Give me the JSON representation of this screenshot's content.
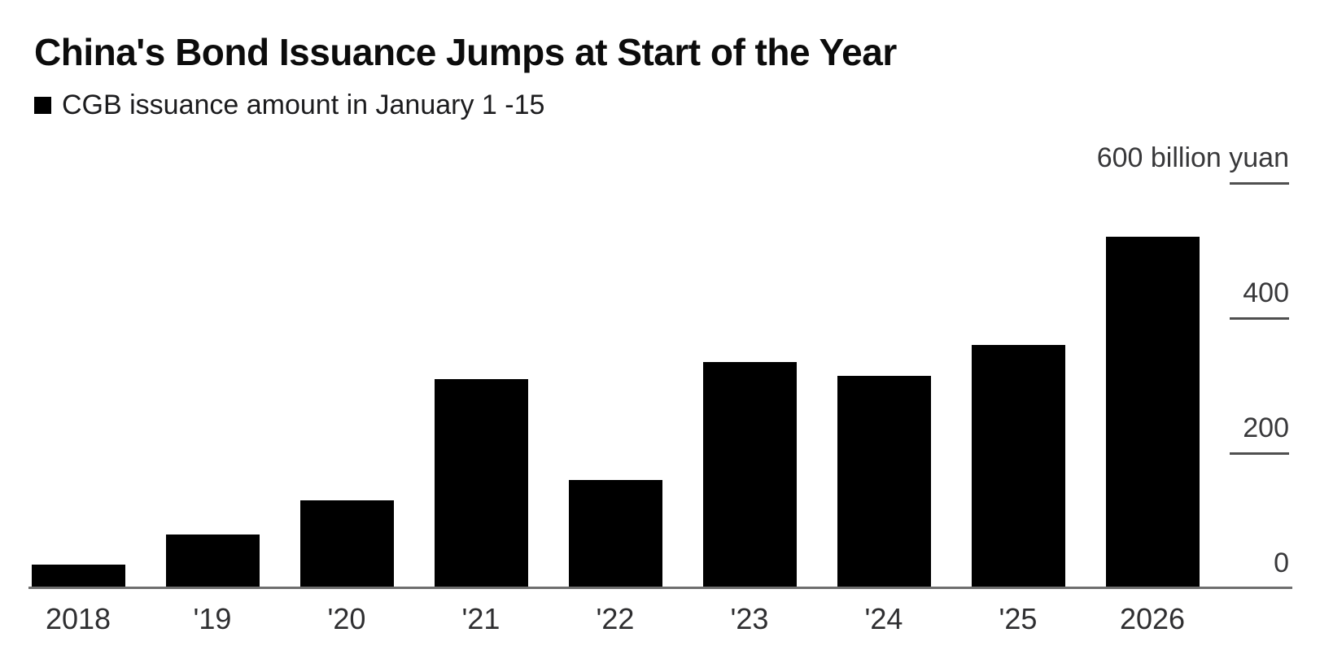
{
  "header": {
    "title": "China's Bond Issuance Jumps at Start of the Year"
  },
  "legend": {
    "label": "CGB issuance amount in January 1 -15",
    "swatch_color": "#000000"
  },
  "chart_data": {
    "type": "bar",
    "title": "China's Bond Issuance Jumps at Start of the Year",
    "series_name": "CGB issuance amount in January 1 -15",
    "unit": "billion yuan",
    "categories": [
      "2018",
      "'19",
      "'20",
      "'21",
      "'22",
      "'23",
      "'24",
      "'25",
      "2026"
    ],
    "values": [
      35,
      80,
      130,
      310,
      160,
      335,
      315,
      360,
      520
    ],
    "ylim": [
      0,
      600
    ],
    "yticks": [
      {
        "value": 600,
        "label": "600 billion yuan"
      },
      {
        "value": 400,
        "label": "400"
      },
      {
        "value": 200,
        "label": "200"
      },
      {
        "value": 0,
        "label": "0"
      }
    ],
    "axis_side": "right",
    "legend_position": "top-left",
    "grid": false,
    "bar_color": "#000000",
    "background_color": "#ffffff"
  }
}
